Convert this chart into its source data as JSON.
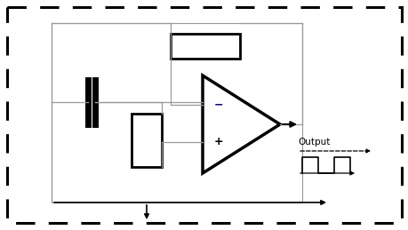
{
  "fig_width": 4.6,
  "fig_height": 2.59,
  "dpi": 100,
  "bg_color": "#ffffff",
  "line_color": "#999999",
  "thick_color": "#000000",
  "minus_color": "#00008B",
  "output_label": "Output"
}
